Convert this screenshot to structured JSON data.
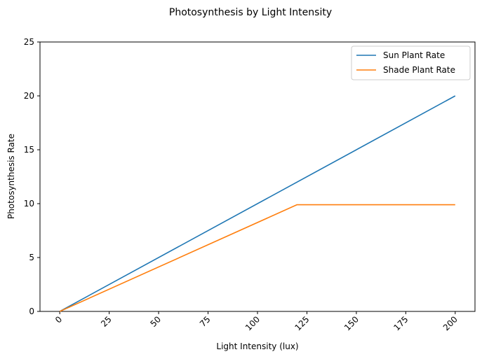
{
  "chart_data": {
    "type": "line",
    "title": "Photosynthesis by Light Intensity",
    "xlabel": "Light Intensity (lux)",
    "ylabel": "Photosynthesis Rate",
    "xlim": [
      -10,
      210
    ],
    "ylim": [
      0,
      25
    ],
    "xticks": [
      0,
      25,
      50,
      75,
      100,
      125,
      150,
      175,
      200
    ],
    "yticks": [
      0,
      5,
      10,
      15,
      20,
      25
    ],
    "x_tick_rotation_deg": 45,
    "grid": false,
    "legend_position": "top-right",
    "series": [
      {
        "name": "Sun Plant Rate",
        "color": "#1f77b4",
        "x": [
          0,
          200
        ],
        "y": [
          0,
          20
        ]
      },
      {
        "name": "Shade Plant Rate",
        "color": "#ff7f0e",
        "x": [
          0,
          120,
          200
        ],
        "y": [
          0,
          9.9,
          9.9
        ]
      }
    ]
  }
}
